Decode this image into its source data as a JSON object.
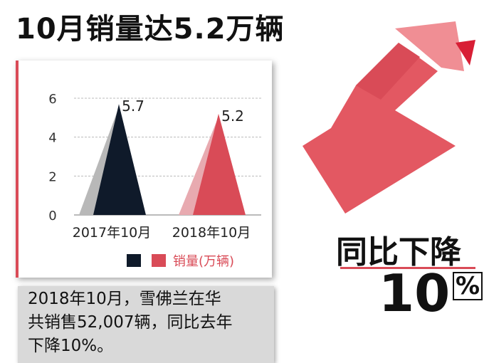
{
  "title": "10月销量达5.2万辆",
  "chart_data": {
    "type": "bar",
    "categories": [
      "2017年10月",
      "2018年10月"
    ],
    "series": [
      {
        "name": "销量(万辆)",
        "values": [
          5.7,
          5.2
        ]
      }
    ],
    "data_labels": [
      "5.7",
      "5.2"
    ],
    "y_ticks": [
      "0",
      "2",
      "4",
      "6"
    ],
    "ylim": [
      0,
      6
    ],
    "grid": true,
    "legend_position": "bottom",
    "colors": {
      "dark": "#0f1a2a",
      "red": "#d94b57",
      "gray": "#b8b8b8",
      "pink": "#e8aab0"
    }
  },
  "decline": {
    "label": "同比下降",
    "number": "10",
    "sign": "%"
  },
  "note": {
    "line1": "2018年10月，雪佛兰在华",
    "line2": "共销售52,007辆，同比去年",
    "line3": "下降10%。"
  },
  "colors": {
    "accent": "#d94b57",
    "arrow": "#e35862",
    "arrow_light": "#f08e94"
  }
}
